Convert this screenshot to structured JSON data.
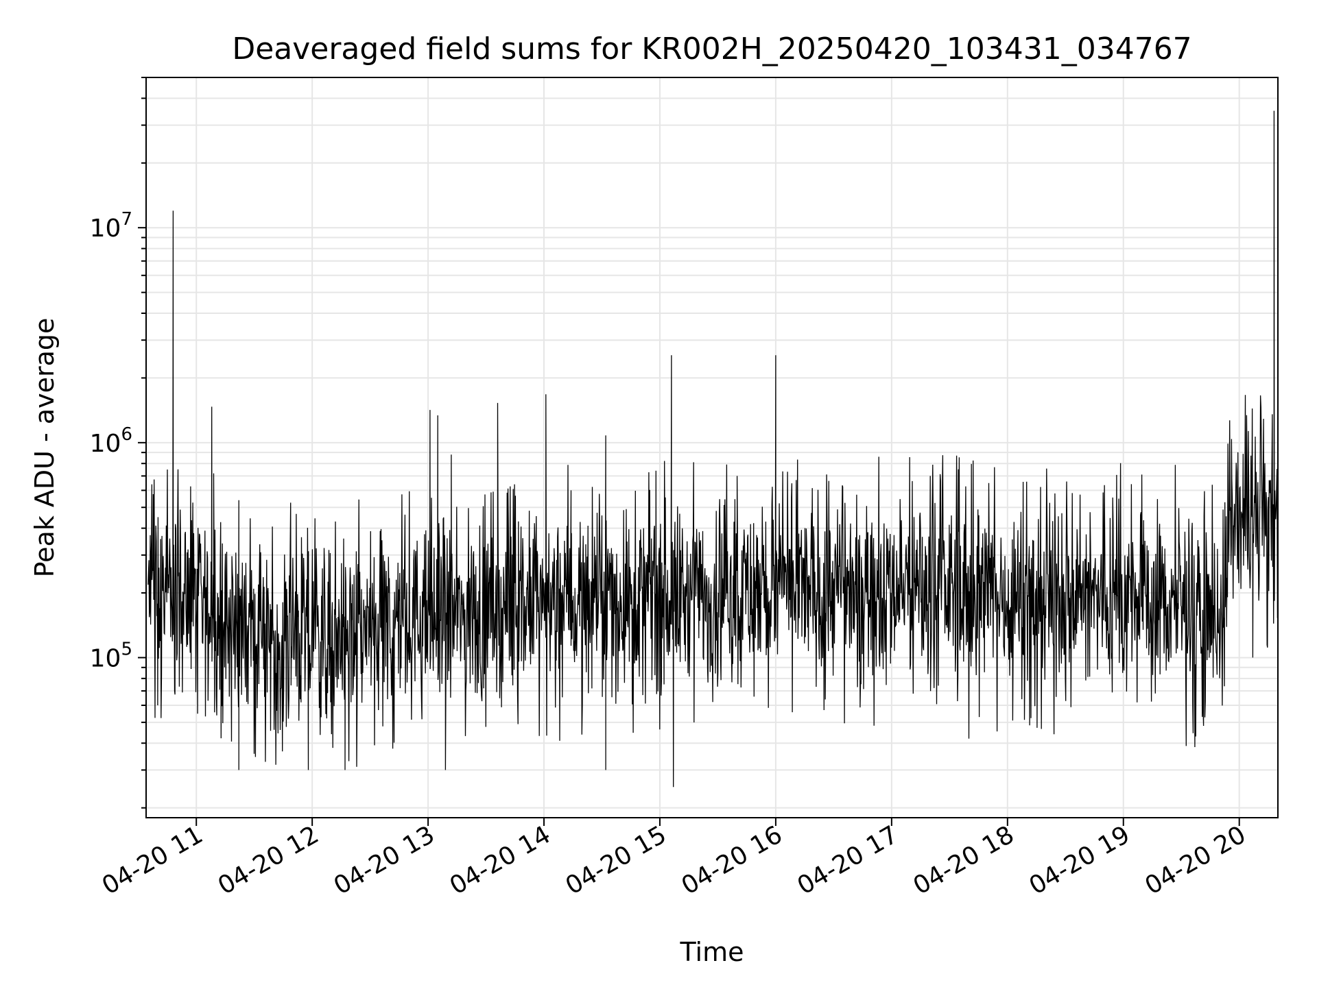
{
  "chart_data": {
    "type": "line",
    "title": "Deaveraged field sums for KR002H_20250420_103431_034767",
    "xlabel": "Time",
    "ylabel": "Peak ADU - average",
    "yscale": "log",
    "grid": true,
    "line_color": "#000000",
    "grid_color": "#e6e6e6",
    "xlim": [
      "2025-04-20 10:34",
      "2025-04-20 20:20"
    ],
    "ylim": [
      18000,
      50000000
    ],
    "x_ticks": [
      {
        "t": "2025-04-20 11:00",
        "label": "04-20 11"
      },
      {
        "t": "2025-04-20 12:00",
        "label": "04-20 12"
      },
      {
        "t": "2025-04-20 13:00",
        "label": "04-20 13"
      },
      {
        "t": "2025-04-20 14:00",
        "label": "04-20 14"
      },
      {
        "t": "2025-04-20 15:00",
        "label": "04-20 15"
      },
      {
        "t": "2025-04-20 16:00",
        "label": "04-20 16"
      },
      {
        "t": "2025-04-20 17:00",
        "label": "04-20 17"
      },
      {
        "t": "2025-04-20 18:00",
        "label": "04-20 18"
      },
      {
        "t": "2025-04-20 19:00",
        "label": "04-20 19"
      },
      {
        "t": "2025-04-20 20:00",
        "label": "04-20 20"
      }
    ],
    "y_ticks": [
      {
        "value": 100000,
        "base": "10",
        "exp": "5"
      },
      {
        "value": 1000000,
        "base": "10",
        "exp": "6"
      },
      {
        "value": 10000000,
        "base": "10",
        "exp": "7"
      }
    ],
    "baseline": [
      [
        "2025-04-20 10:35",
        200000
      ],
      [
        "2025-04-20 11:00",
        175000
      ],
      [
        "2025-04-20 11:30",
        130000
      ],
      [
        "2025-04-20 12:00",
        120000
      ],
      [
        "2025-04-20 12:30",
        135000
      ],
      [
        "2025-04-20 13:00",
        150000
      ],
      [
        "2025-04-20 13:30",
        160000
      ],
      [
        "2025-04-20 14:00",
        180000
      ],
      [
        "2025-04-20 14:30",
        185000
      ],
      [
        "2025-04-20 15:00",
        190000
      ],
      [
        "2025-04-20 15:30",
        195000
      ],
      [
        "2025-04-20 16:00",
        205000
      ],
      [
        "2025-04-20 16:30",
        210000
      ],
      [
        "2025-04-20 17:00",
        215000
      ],
      [
        "2025-04-20 17:30",
        205000
      ],
      [
        "2025-04-20 18:00",
        195000
      ],
      [
        "2025-04-20 18:30",
        190000
      ],
      [
        "2025-04-20 19:00",
        185000
      ],
      [
        "2025-04-20 19:30",
        175000
      ],
      [
        "2025-04-20 19:50",
        160000
      ],
      [
        "2025-04-20 19:55",
        400000
      ],
      [
        "2025-04-20 20:20",
        420000
      ]
    ],
    "spikes": [
      [
        "2025-04-20 10:37",
        640000
      ],
      [
        "2025-04-20 10:40",
        60000
      ],
      [
        "2025-04-20 10:45",
        750000
      ],
      [
        "2025-04-20 10:48",
        12000000
      ],
      [
        "2025-04-20 11:08",
        1470000
      ],
      [
        "2025-04-20 11:09",
        720000
      ],
      [
        "2025-04-20 11:22",
        540000
      ],
      [
        "2025-04-20 11:22",
        30000
      ],
      [
        "2025-04-20 11:58",
        30000
      ],
      [
        "2025-04-20 12:17",
        30000
      ],
      [
        "2025-04-20 13:01",
        1420000
      ],
      [
        "2025-04-20 13:05",
        1340000
      ],
      [
        "2025-04-20 13:09",
        30000
      ],
      [
        "2025-04-20 13:12",
        880000
      ],
      [
        "2025-04-20 13:36",
        1530000
      ],
      [
        "2025-04-20 14:01",
        1680000
      ],
      [
        "2025-04-20 14:14",
        600000
      ],
      [
        "2025-04-20 14:32",
        1080000
      ],
      [
        "2025-04-20 14:32",
        30000
      ],
      [
        "2025-04-20 14:58",
        740000
      ],
      [
        "2025-04-20 15:06",
        2550000
      ],
      [
        "2025-04-20 15:07",
        25000
      ],
      [
        "2025-04-20 15:40",
        700000
      ],
      [
        "2025-04-20 16:00",
        2550000
      ],
      [
        "2025-04-20 17:20",
        700000
      ],
      [
        "2025-04-20 17:40",
        42000
      ],
      [
        "2025-04-20 19:56",
        1040000
      ],
      [
        "2025-04-20 20:07",
        100000
      ],
      [
        "2025-04-20 20:18",
        35000000
      ]
    ]
  }
}
